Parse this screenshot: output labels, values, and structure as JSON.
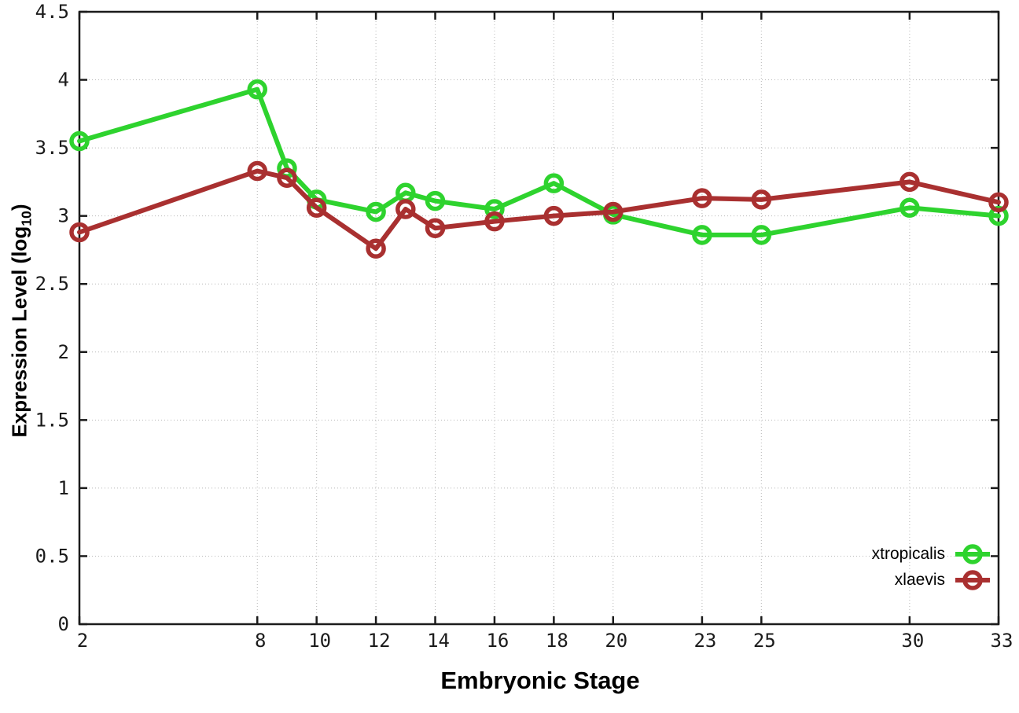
{
  "chart_data": {
    "type": "line",
    "title": "",
    "xlabel": "Embryonic Stage",
    "ylabel": "Expression Level (log10)",
    "ylabel_rich": {
      "main": "Expression Level (log",
      "sub": "10",
      "end": ")"
    },
    "x": [
      2,
      8,
      9,
      10,
      12,
      13,
      14,
      16,
      18,
      20,
      23,
      25,
      30,
      33
    ],
    "series": [
      {
        "name": "xtropicalis",
        "color": "#2ed32e",
        "marker": "open-circle",
        "values": [
          3.55,
          3.93,
          3.35,
          3.12,
          3.03,
          3.17,
          3.11,
          3.05,
          3.24,
          3.01,
          2.86,
          2.86,
          3.06,
          3.0
        ]
      },
      {
        "name": "xlaevis",
        "color": "#a93030",
        "marker": "open-circle",
        "values": [
          2.88,
          3.33,
          3.28,
          3.06,
          2.76,
          3.05,
          2.91,
          2.96,
          3.0,
          3.03,
          3.13,
          3.12,
          3.25,
          3.1
        ]
      }
    ],
    "xlim": [
      2,
      33
    ],
    "ylim": [
      0,
      4.5
    ],
    "x_ticks": [
      2,
      8,
      10,
      12,
      14,
      16,
      18,
      20,
      23,
      25,
      30,
      33
    ],
    "x_tick_labels": [
      "2",
      "8",
      "10",
      "12",
      "14",
      "16",
      "18",
      "20",
      "23",
      "25",
      "30",
      "33"
    ],
    "y_ticks": [
      0,
      0.5,
      1,
      1.5,
      2,
      2.5,
      3,
      3.5,
      4,
      4.5
    ],
    "y_tick_labels": [
      "0",
      "0.5",
      "1",
      "1.5",
      "2",
      "2.5",
      "3",
      "3.5",
      "4",
      "4.5"
    ],
    "grid": true,
    "grid_color": "#b8b8b8",
    "axis_color": "#1b1b1b",
    "tick_label_color": "#1b1b1b",
    "legend_position": "inside-bottom-right",
    "legend_labels": [
      "xtropicalis",
      "xlaevis"
    ]
  }
}
